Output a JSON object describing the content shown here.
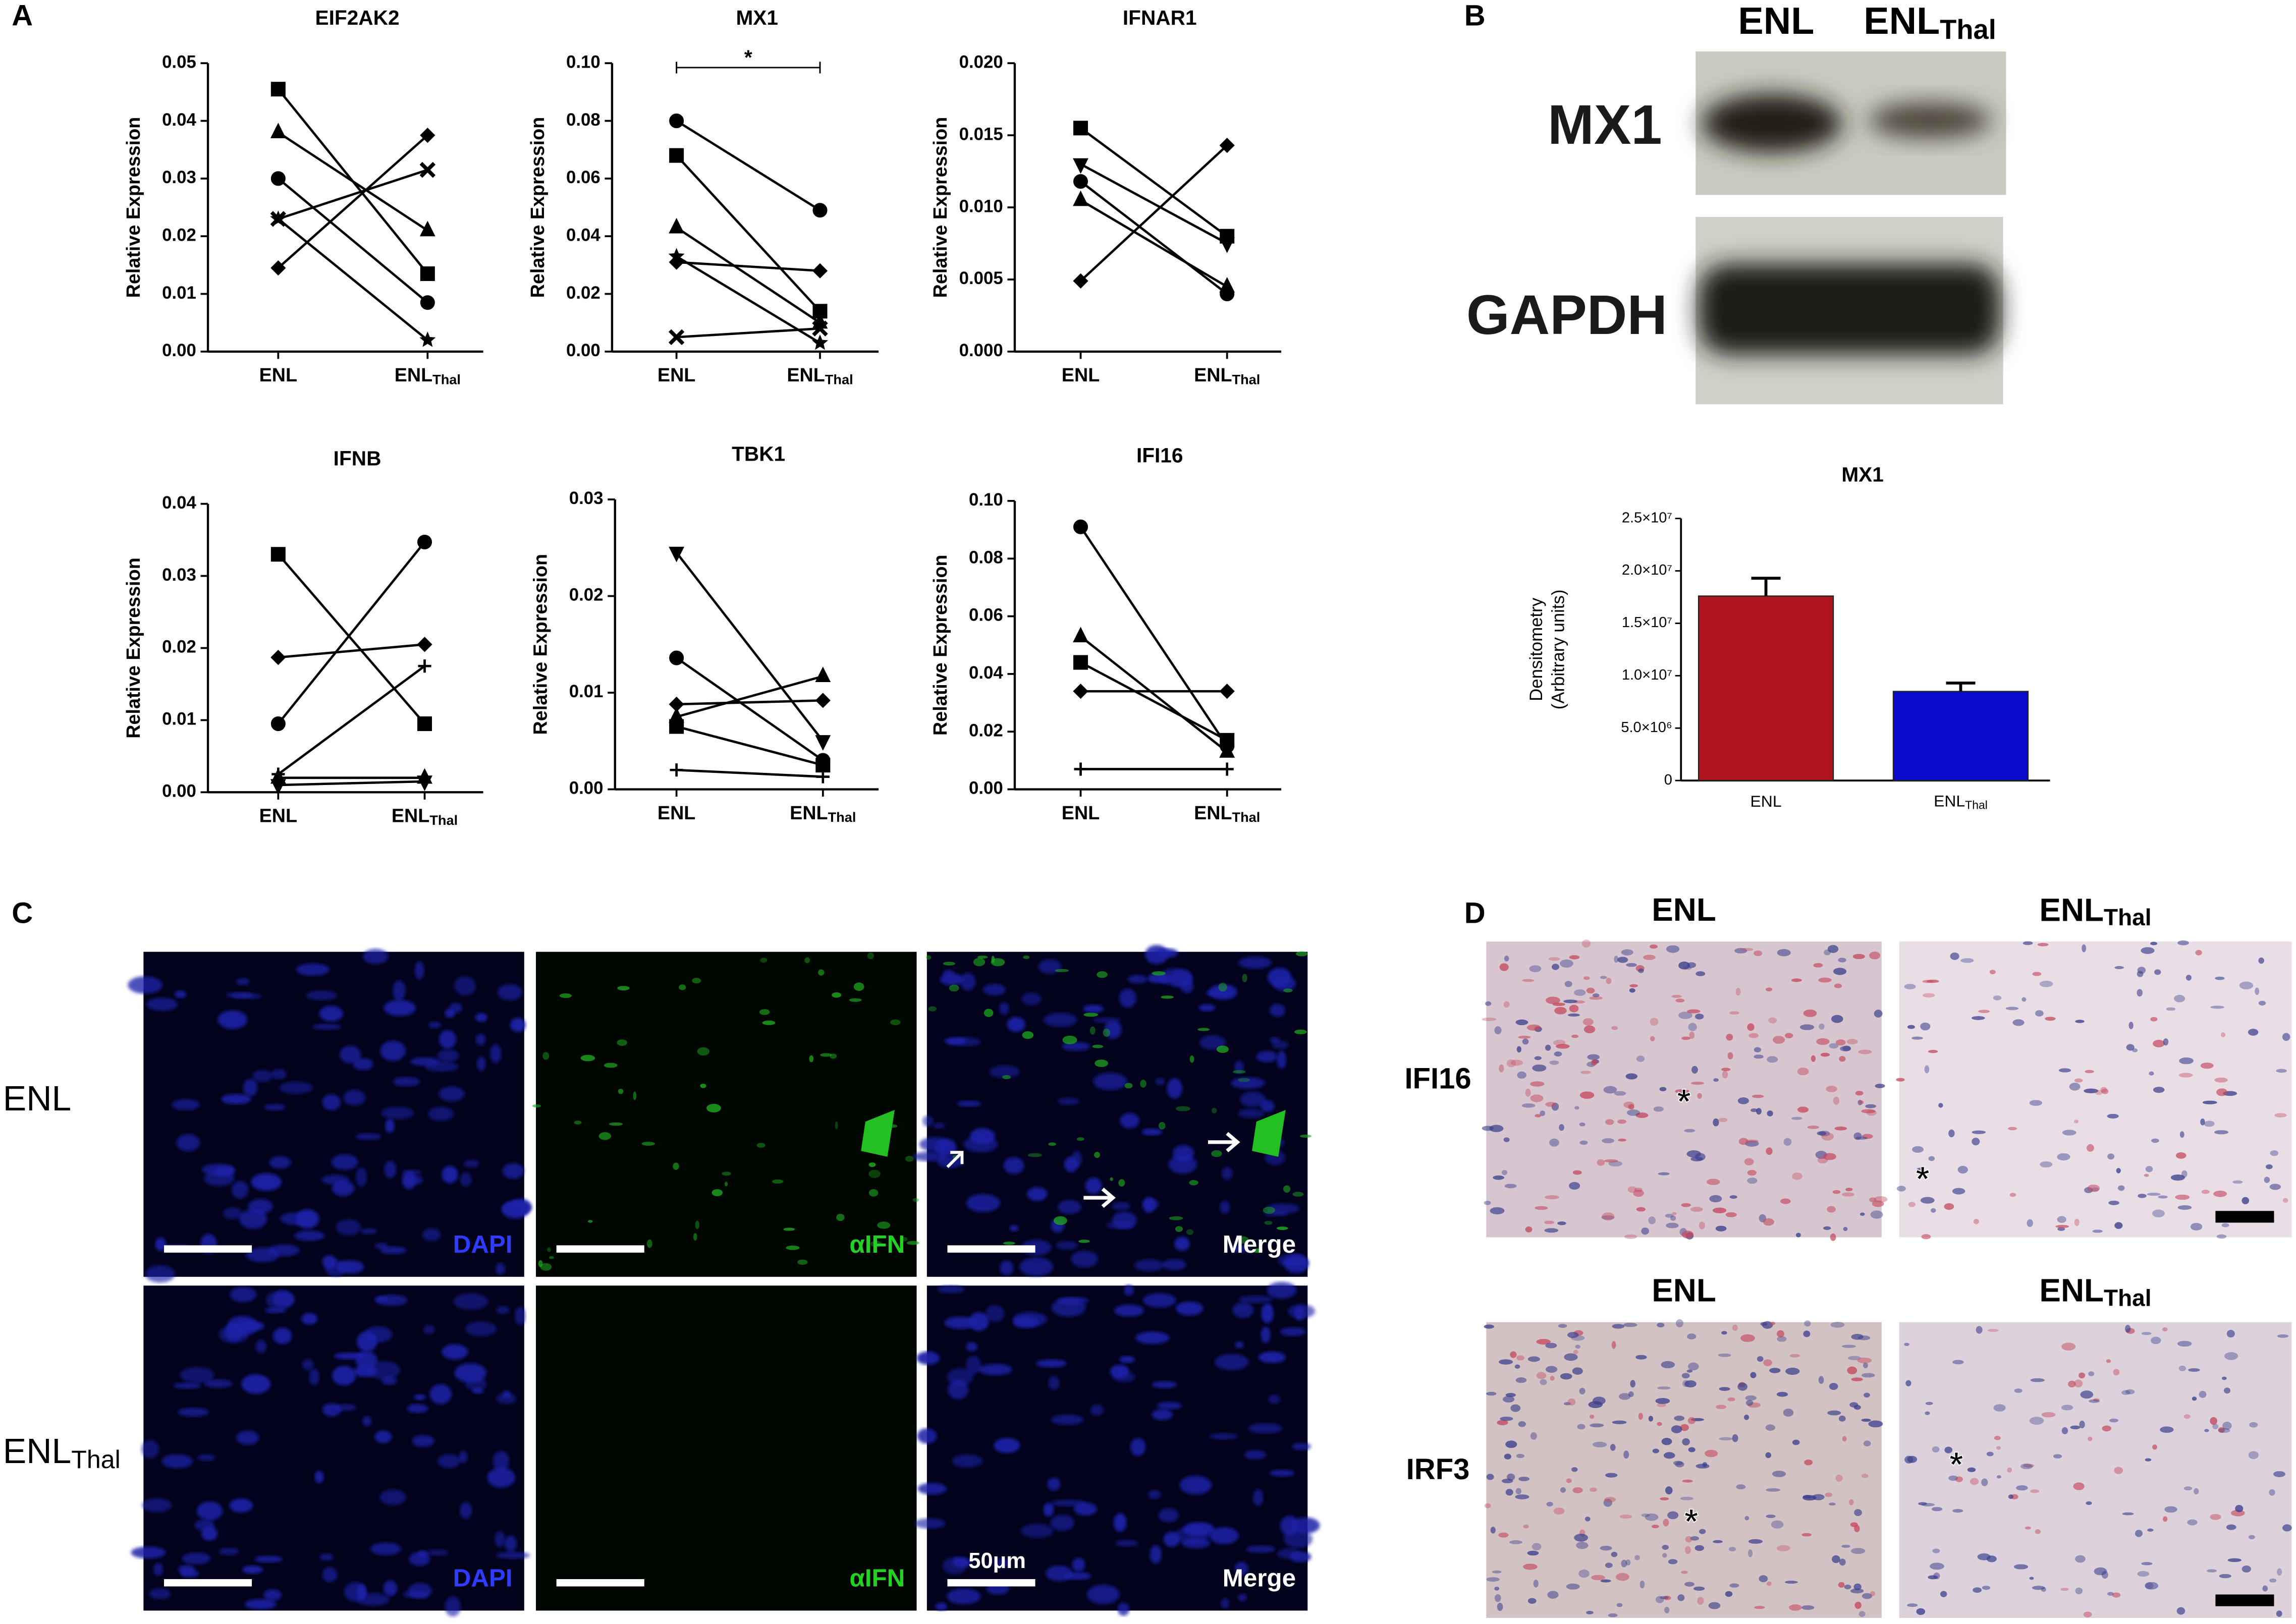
{
  "panels": [
    "A",
    "B",
    "C",
    "D"
  ],
  "chart_data": [
    {
      "type": "line",
      "title": "EIF2AK2",
      "y_label": "Relative Expression",
      "categories": [
        "ENL",
        "ENLThal"
      ],
      "ylim": [
        0,
        0.05
      ],
      "yticks": [
        {
          "value": 0,
          "label": "0.00"
        },
        0.01,
        0.02,
        0.03,
        0.04,
        0.05
      ],
      "series": [
        {
          "marker": "square",
          "color": "#000000",
          "values": [
            0.0455,
            0.0135
          ]
        },
        {
          "marker": "triangle",
          "color": "#000000",
          "values": [
            0.038,
            0.021
          ]
        },
        {
          "marker": "circle",
          "color": "#000000",
          "values": [
            0.03,
            0.0085
          ]
        },
        {
          "marker": "x",
          "color": "#000000",
          "values": [
            0.023,
            0.0315
          ]
        },
        {
          "marker": "star",
          "color": "#000000",
          "values": [
            0.023,
            0.002
          ]
        },
        {
          "marker": "diamond",
          "color": "#000000",
          "values": [
            0.0145,
            0.0375
          ]
        }
      ]
    },
    {
      "type": "line",
      "title": "MX1",
      "y_label": "Relative Expression",
      "categories": [
        "ENL",
        "ENLThal"
      ],
      "significance": "*",
      "ylim": [
        0,
        0.1
      ],
      "yticks": [
        {
          "value": 0,
          "label": "0.00"
        },
        0.02,
        0.04,
        0.06,
        0.08,
        {
          "value": 0.1,
          "label": "0.10"
        }
      ],
      "series": [
        {
          "marker": "circle",
          "color": "#000000",
          "values": [
            0.08,
            0.049
          ]
        },
        {
          "marker": "square",
          "color": "#000000",
          "values": [
            0.068,
            0.014
          ]
        },
        {
          "marker": "triangle",
          "color": "#000000",
          "values": [
            0.043,
            0.01
          ]
        },
        {
          "marker": "diamond",
          "color": "#000000",
          "values": [
            0.031,
            0.028
          ]
        },
        {
          "marker": "star",
          "color": "#000000",
          "values": [
            0.033,
            0.003
          ]
        },
        {
          "marker": "x",
          "color": "#000000",
          "values": [
            0.005,
            0.008
          ]
        }
      ]
    },
    {
      "type": "line",
      "title": "IFNAR1",
      "y_label": "Relative Expression",
      "categories": [
        "ENL",
        "ENLThal"
      ],
      "ylim": [
        0,
        0.02
      ],
      "yticks": [
        {
          "value": 0,
          "label": "0.000"
        },
        0.005,
        {
          "value": 0.01,
          "label": "0.010"
        },
        0.015,
        {
          "value": 0.02,
          "label": "0.020"
        }
      ],
      "series": [
        {
          "marker": "square",
          "color": "#000000",
          "values": [
            0.0155,
            0.008
          ]
        },
        {
          "marker": "down-triangle",
          "color": "#000000",
          "values": [
            0.013,
            0.0075
          ]
        },
        {
          "marker": "circle",
          "color": "#000000",
          "values": [
            0.0118,
            0.004
          ]
        },
        {
          "marker": "triangle",
          "color": "#000000",
          "values": [
            0.0105,
            0.0045
          ]
        },
        {
          "marker": "diamond",
          "color": "#000000",
          "values": [
            0.0049,
            0.0143
          ]
        }
      ]
    },
    {
      "type": "line",
      "title": "IFNB",
      "y_label": "Relative Expression",
      "categories": [
        "ENL",
        "ENLThal"
      ],
      "ylim": [
        0,
        0.04
      ],
      "yticks": [
        {
          "value": 0,
          "label": "0.00"
        },
        0.01,
        0.02,
        0.03,
        0.04
      ],
      "series": [
        {
          "marker": "square",
          "color": "#000000",
          "values": [
            0.033,
            0.0095
          ]
        },
        {
          "marker": "diamond",
          "color": "#000000",
          "values": [
            0.0187,
            0.0205
          ]
        },
        {
          "marker": "circle",
          "color": "#000000",
          "values": [
            0.0095,
            0.0347
          ]
        },
        {
          "marker": "plus",
          "color": "#000000",
          "values": [
            0.0025,
            0.0175
          ]
        },
        {
          "marker": "triangle",
          "color": "#000000",
          "values": [
            0.002,
            0.002
          ]
        },
        {
          "marker": "down-triangle",
          "color": "#000000",
          "values": [
            0.001,
            0.0015
          ]
        }
      ]
    },
    {
      "type": "line",
      "title": "TBK1",
      "y_label": "Relative Expression",
      "categories": [
        "ENL",
        "ENLThal"
      ],
      "ylim": [
        0,
        0.03
      ],
      "yticks": [
        {
          "value": 0,
          "label": "0.00"
        },
        0.01,
        0.02,
        0.03
      ],
      "series": [
        {
          "marker": "down-triangle",
          "color": "#000000",
          "values": [
            0.0245,
            0.005
          ]
        },
        {
          "marker": "circle",
          "color": "#000000",
          "values": [
            0.0136,
            0.003
          ]
        },
        {
          "marker": "diamond",
          "color": "#000000",
          "values": [
            0.0088,
            0.0092
          ]
        },
        {
          "marker": "triangle",
          "color": "#000000",
          "values": [
            0.0075,
            0.0117
          ]
        },
        {
          "marker": "square",
          "color": "#000000",
          "values": [
            0.0065,
            0.0025
          ]
        },
        {
          "marker": "plus",
          "color": "#000000",
          "values": [
            0.002,
            0.0013
          ]
        }
      ]
    },
    {
      "type": "line",
      "title": "IFI16",
      "y_label": "Relative Expression",
      "categories": [
        "ENL",
        "ENLThal"
      ],
      "ylim": [
        0,
        0.1
      ],
      "yticks": [
        {
          "value": 0,
          "label": "0.00"
        },
        0.02,
        0.04,
        0.06,
        0.08,
        {
          "value": 0.1,
          "label": "0.10"
        }
      ],
      "series": [
        {
          "marker": "circle",
          "color": "#000000",
          "values": [
            0.091,
            0.015
          ]
        },
        {
          "marker": "triangle",
          "color": "#000000",
          "values": [
            0.053,
            0.013
          ]
        },
        {
          "marker": "square",
          "color": "#000000",
          "values": [
            0.044,
            0.017
          ]
        },
        {
          "marker": "diamond",
          "color": "#000000",
          "values": [
            0.034,
            0.034
          ]
        },
        {
          "marker": "plus",
          "color": "#000000",
          "values": [
            0.007,
            0.007
          ]
        }
      ]
    },
    {
      "type": "bar",
      "title": "MX1",
      "y_label": [
        "Densitometry",
        "(Arbitrary units)"
      ],
      "categories": [
        "ENL",
        "ENLThal"
      ],
      "values": [
        17600000,
        8500000
      ],
      "errors": [
        1700000,
        800000
      ],
      "colors": [
        "#b0141b",
        "#0a0acc"
      ],
      "ylim": [
        0,
        25000000
      ],
      "yticks": [
        0,
        {
          "value": 5000000,
          "label": "5.0×10⁶"
        },
        {
          "value": 10000000,
          "label": "1.0×10⁷"
        },
        {
          "value": 15000000,
          "label": "1.5×10⁷"
        },
        {
          "value": 20000000,
          "label": "2.0×10⁷"
        },
        {
          "value": 25000000,
          "label": "2.5×10⁷"
        }
      ]
    }
  ],
  "western_blot": {
    "lanes": [
      "ENL",
      "ENLThal"
    ],
    "bands": [
      "MX1",
      "GAPDH"
    ]
  },
  "immunofluorescence": {
    "rows": [
      "ENL",
      "ENLThal"
    ],
    "channels": [
      "DAPI",
      "αIFN",
      "Merge"
    ],
    "scale": "50μm"
  },
  "histology": {
    "columns": [
      "ENL",
      "ENLThal"
    ],
    "rows": [
      "IFI16",
      "IRF3"
    ],
    "marker": "*"
  }
}
